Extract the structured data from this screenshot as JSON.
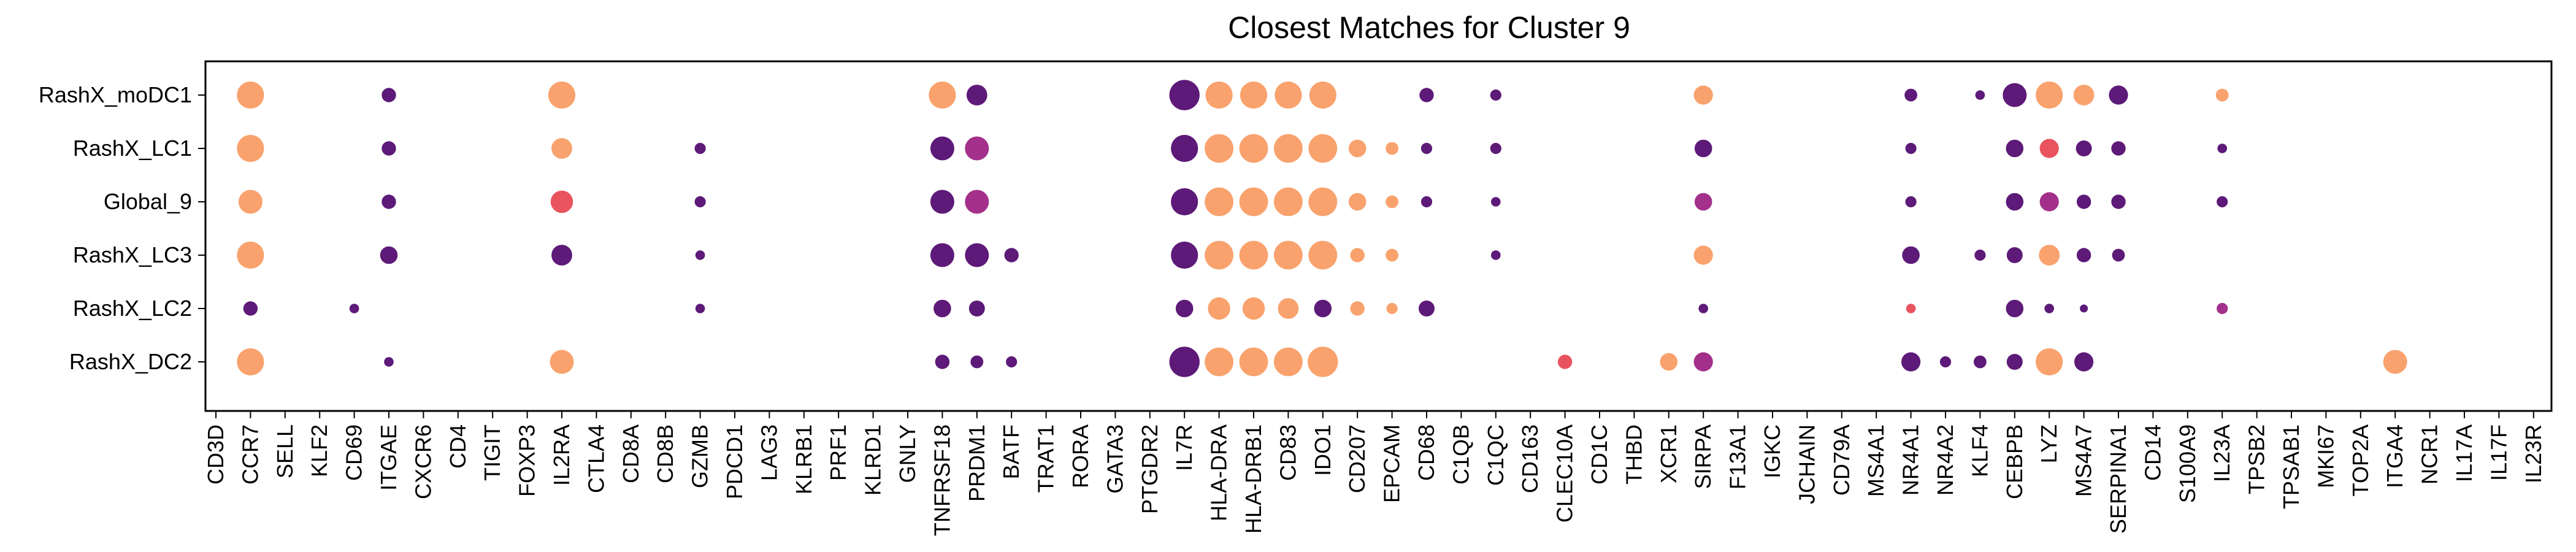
{
  "chart_data": {
    "type": "scatter",
    "title": "Closest Matches for Cluster 9",
    "xlabel": "",
    "ylabel": "",
    "grid": false,
    "genes": [
      "CD3D",
      "CCR7",
      "SELL",
      "KLF2",
      "CD69",
      "ITGAE",
      "CXCR6",
      "CD4",
      "TIGIT",
      "FOXP3",
      "IL2RA",
      "CTLA4",
      "CD8A",
      "CD8B",
      "GZMB",
      "PDCD1",
      "LAG3",
      "KLRB1",
      "PRF1",
      "KLRD1",
      "GNLY",
      "TNFRSF18",
      "PRDM1",
      "BATF",
      "TRAT1",
      "RORA",
      "GATA3",
      "PTGDR2",
      "IL7R",
      "HLA-DRA",
      "HLA-DRB1",
      "CD83",
      "IDO1",
      "CD207",
      "EPCAM",
      "CD68",
      "C1QB",
      "C1QC",
      "CD163",
      "CLEC10A",
      "CD1C",
      "THBD",
      "XCR1",
      "SIRPA",
      "F13A1",
      "IGKC",
      "JCHAIN",
      "CD79A",
      "MS4A1",
      "NR4A1",
      "NR4A2",
      "KLF4",
      "CEBPB",
      "LYZ",
      "MS4A7",
      "SERPINA1",
      "CD14",
      "S100A9",
      "IL23A",
      "TPSB2",
      "TPSAB1",
      "MKI67",
      "TOP2A",
      "ITGA4",
      "NCR1",
      "IL17A",
      "IL17F",
      "IL23R"
    ],
    "rows": [
      "RashX_moDC1",
      "RashX_LC1",
      "Global_9",
      "RashX_LC3",
      "RashX_LC2",
      "RashX_DC2"
    ],
    "size_scale": "relative point size 0-1",
    "color_palette": "magma (purple = low, orange = high)",
    "colors": {
      "low": "#5d1a78",
      "mid": "#a3308a",
      "red": "#e8535e",
      "high": "#f9a26d"
    },
    "points": [
      {
        "row": "RashX_moDC1",
        "gene": "CCR7",
        "size": 0.85,
        "color": "high"
      },
      {
        "row": "RashX_moDC1",
        "gene": "ITGAE",
        "size": 0.45,
        "color": "low"
      },
      {
        "row": "RashX_moDC1",
        "gene": "IL2RA",
        "size": 0.85,
        "color": "high"
      },
      {
        "row": "RashX_moDC1",
        "gene": "TNFRSF18",
        "size": 0.85,
        "color": "high"
      },
      {
        "row": "RashX_moDC1",
        "gene": "PRDM1",
        "size": 0.65,
        "color": "low"
      },
      {
        "row": "RashX_moDC1",
        "gene": "IL7R",
        "size": 0.95,
        "color": "low"
      },
      {
        "row": "RashX_moDC1",
        "gene": "HLA-DRA",
        "size": 0.85,
        "color": "high"
      },
      {
        "row": "RashX_moDC1",
        "gene": "HLA-DRB1",
        "size": 0.85,
        "color": "high"
      },
      {
        "row": "RashX_moDC1",
        "gene": "CD83",
        "size": 0.85,
        "color": "high"
      },
      {
        "row": "RashX_moDC1",
        "gene": "IDO1",
        "size": 0.85,
        "color": "high"
      },
      {
        "row": "RashX_moDC1",
        "gene": "CD68",
        "size": 0.45,
        "color": "low"
      },
      {
        "row": "RashX_moDC1",
        "gene": "C1QC",
        "size": 0.35,
        "color": "low"
      },
      {
        "row": "RashX_moDC1",
        "gene": "SIRPA",
        "size": 0.6,
        "color": "high"
      },
      {
        "row": "RashX_moDC1",
        "gene": "NR4A1",
        "size": 0.4,
        "color": "low"
      },
      {
        "row": "RashX_moDC1",
        "gene": "KLF4",
        "size": 0.3,
        "color": "low"
      },
      {
        "row": "RashX_moDC1",
        "gene": "CEBPB",
        "size": 0.75,
        "color": "low"
      },
      {
        "row": "RashX_moDC1",
        "gene": "LYZ",
        "size": 0.85,
        "color": "high"
      },
      {
        "row": "RashX_moDC1",
        "gene": "MS4A7",
        "size": 0.65,
        "color": "high"
      },
      {
        "row": "RashX_moDC1",
        "gene": "SERPINA1",
        "size": 0.6,
        "color": "low"
      },
      {
        "row": "RashX_moDC1",
        "gene": "IL23A",
        "size": 0.4,
        "color": "high"
      },
      {
        "row": "RashX_LC1",
        "gene": "CCR7",
        "size": 0.85,
        "color": "high"
      },
      {
        "row": "RashX_LC1",
        "gene": "ITGAE",
        "size": 0.45,
        "color": "low"
      },
      {
        "row": "RashX_LC1",
        "gene": "IL2RA",
        "size": 0.65,
        "color": "high"
      },
      {
        "row": "RashX_LC1",
        "gene": "GZMB",
        "size": 0.35,
        "color": "low"
      },
      {
        "row": "RashX_LC1",
        "gene": "TNFRSF18",
        "size": 0.75,
        "color": "low"
      },
      {
        "row": "RashX_LC1",
        "gene": "PRDM1",
        "size": 0.75,
        "color": "mid"
      },
      {
        "row": "RashX_LC1",
        "gene": "IL7R",
        "size": 0.85,
        "color": "low"
      },
      {
        "row": "RashX_LC1",
        "gene": "HLA-DRA",
        "size": 0.9,
        "color": "high"
      },
      {
        "row": "RashX_LC1",
        "gene": "HLA-DRB1",
        "size": 0.9,
        "color": "high"
      },
      {
        "row": "RashX_LC1",
        "gene": "CD83",
        "size": 0.9,
        "color": "high"
      },
      {
        "row": "RashX_LC1",
        "gene": "IDO1",
        "size": 0.9,
        "color": "high"
      },
      {
        "row": "RashX_LC1",
        "gene": "CD207",
        "size": 0.55,
        "color": "high"
      },
      {
        "row": "RashX_LC1",
        "gene": "EPCAM",
        "size": 0.4,
        "color": "high"
      },
      {
        "row": "RashX_LC1",
        "gene": "CD68",
        "size": 0.35,
        "color": "low"
      },
      {
        "row": "RashX_LC1",
        "gene": "C1QC",
        "size": 0.35,
        "color": "low"
      },
      {
        "row": "RashX_LC1",
        "gene": "SIRPA",
        "size": 0.55,
        "color": "low"
      },
      {
        "row": "RashX_LC1",
        "gene": "NR4A1",
        "size": 0.35,
        "color": "low"
      },
      {
        "row": "RashX_LC1",
        "gene": "CEBPB",
        "size": 0.55,
        "color": "low"
      },
      {
        "row": "RashX_LC1",
        "gene": "LYZ",
        "size": 0.6,
        "color": "red"
      },
      {
        "row": "RashX_LC1",
        "gene": "MS4A7",
        "size": 0.5,
        "color": "low"
      },
      {
        "row": "RashX_LC1",
        "gene": "SERPINA1",
        "size": 0.45,
        "color": "low"
      },
      {
        "row": "RashX_LC1",
        "gene": "IL23A",
        "size": 0.3,
        "color": "low"
      },
      {
        "row": "Global_9",
        "gene": "CCR7",
        "size": 0.75,
        "color": "high"
      },
      {
        "row": "Global_9",
        "gene": "ITGAE",
        "size": 0.45,
        "color": "low"
      },
      {
        "row": "Global_9",
        "gene": "IL2RA",
        "size": 0.7,
        "color": "red"
      },
      {
        "row": "Global_9",
        "gene": "GZMB",
        "size": 0.35,
        "color": "low"
      },
      {
        "row": "Global_9",
        "gene": "TNFRSF18",
        "size": 0.75,
        "color": "low"
      },
      {
        "row": "Global_9",
        "gene": "PRDM1",
        "size": 0.75,
        "color": "mid"
      },
      {
        "row": "Global_9",
        "gene": "IL7R",
        "size": 0.85,
        "color": "low"
      },
      {
        "row": "Global_9",
        "gene": "HLA-DRA",
        "size": 0.9,
        "color": "high"
      },
      {
        "row": "Global_9",
        "gene": "HLA-DRB1",
        "size": 0.9,
        "color": "high"
      },
      {
        "row": "Global_9",
        "gene": "CD83",
        "size": 0.9,
        "color": "high"
      },
      {
        "row": "Global_9",
        "gene": "IDO1",
        "size": 0.9,
        "color": "high"
      },
      {
        "row": "Global_9",
        "gene": "CD207",
        "size": 0.55,
        "color": "high"
      },
      {
        "row": "Global_9",
        "gene": "EPCAM",
        "size": 0.4,
        "color": "high"
      },
      {
        "row": "Global_9",
        "gene": "CD68",
        "size": 0.35,
        "color": "low"
      },
      {
        "row": "Global_9",
        "gene": "C1QC",
        "size": 0.3,
        "color": "low"
      },
      {
        "row": "Global_9",
        "gene": "SIRPA",
        "size": 0.55,
        "color": "mid"
      },
      {
        "row": "Global_9",
        "gene": "NR4A1",
        "size": 0.35,
        "color": "low"
      },
      {
        "row": "Global_9",
        "gene": "CEBPB",
        "size": 0.55,
        "color": "low"
      },
      {
        "row": "Global_9",
        "gene": "LYZ",
        "size": 0.6,
        "color": "mid"
      },
      {
        "row": "Global_9",
        "gene": "MS4A7",
        "size": 0.45,
        "color": "low"
      },
      {
        "row": "Global_9",
        "gene": "SERPINA1",
        "size": 0.45,
        "color": "low"
      },
      {
        "row": "Global_9",
        "gene": "IL23A",
        "size": 0.35,
        "color": "low"
      },
      {
        "row": "RashX_LC3",
        "gene": "CCR7",
        "size": 0.85,
        "color": "high"
      },
      {
        "row": "RashX_LC3",
        "gene": "ITGAE",
        "size": 0.55,
        "color": "low"
      },
      {
        "row": "RashX_LC3",
        "gene": "IL2RA",
        "size": 0.65,
        "color": "low"
      },
      {
        "row": "RashX_LC3",
        "gene": "GZMB",
        "size": 0.3,
        "color": "low"
      },
      {
        "row": "RashX_LC3",
        "gene": "TNFRSF18",
        "size": 0.75,
        "color": "low"
      },
      {
        "row": "RashX_LC3",
        "gene": "PRDM1",
        "size": 0.75,
        "color": "low"
      },
      {
        "row": "RashX_LC3",
        "gene": "BATF",
        "size": 0.45,
        "color": "low"
      },
      {
        "row": "RashX_LC3",
        "gene": "IL7R",
        "size": 0.85,
        "color": "low"
      },
      {
        "row": "RashX_LC3",
        "gene": "HLA-DRA",
        "size": 0.9,
        "color": "high"
      },
      {
        "row": "RashX_LC3",
        "gene": "HLA-DRB1",
        "size": 0.9,
        "color": "high"
      },
      {
        "row": "RashX_LC3",
        "gene": "CD83",
        "size": 0.9,
        "color": "high"
      },
      {
        "row": "RashX_LC3",
        "gene": "IDO1",
        "size": 0.9,
        "color": "high"
      },
      {
        "row": "RashX_LC3",
        "gene": "CD207",
        "size": 0.45,
        "color": "high"
      },
      {
        "row": "RashX_LC3",
        "gene": "EPCAM",
        "size": 0.4,
        "color": "high"
      },
      {
        "row": "RashX_LC3",
        "gene": "C1QC",
        "size": 0.3,
        "color": "low"
      },
      {
        "row": "RashX_LC3",
        "gene": "SIRPA",
        "size": 0.6,
        "color": "high"
      },
      {
        "row": "RashX_LC3",
        "gene": "NR4A1",
        "size": 0.55,
        "color": "low"
      },
      {
        "row": "RashX_LC3",
        "gene": "KLF4",
        "size": 0.35,
        "color": "low"
      },
      {
        "row": "RashX_LC3",
        "gene": "CEBPB",
        "size": 0.5,
        "color": "low"
      },
      {
        "row": "RashX_LC3",
        "gene": "LYZ",
        "size": 0.65,
        "color": "high"
      },
      {
        "row": "RashX_LC3",
        "gene": "MS4A7",
        "size": 0.45,
        "color": "low"
      },
      {
        "row": "RashX_LC3",
        "gene": "SERPINA1",
        "size": 0.4,
        "color": "low"
      },
      {
        "row": "RashX_LC2",
        "gene": "CCR7",
        "size": 0.45,
        "color": "low"
      },
      {
        "row": "RashX_LC2",
        "gene": "CD69",
        "size": 0.3,
        "color": "low"
      },
      {
        "row": "RashX_LC2",
        "gene": "GZMB",
        "size": 0.3,
        "color": "low"
      },
      {
        "row": "RashX_LC2",
        "gene": "TNFRSF18",
        "size": 0.55,
        "color": "low"
      },
      {
        "row": "RashX_LC2",
        "gene": "PRDM1",
        "size": 0.5,
        "color": "low"
      },
      {
        "row": "RashX_LC2",
        "gene": "IL7R",
        "size": 0.55,
        "color": "low"
      },
      {
        "row": "RashX_LC2",
        "gene": "HLA-DRA",
        "size": 0.7,
        "color": "high"
      },
      {
        "row": "RashX_LC2",
        "gene": "HLA-DRB1",
        "size": 0.7,
        "color": "high"
      },
      {
        "row": "RashX_LC2",
        "gene": "CD83",
        "size": 0.65,
        "color": "high"
      },
      {
        "row": "RashX_LC2",
        "gene": "IDO1",
        "size": 0.55,
        "color": "low"
      },
      {
        "row": "RashX_LC2",
        "gene": "CD207",
        "size": 0.45,
        "color": "high"
      },
      {
        "row": "RashX_LC2",
        "gene": "EPCAM",
        "size": 0.35,
        "color": "high"
      },
      {
        "row": "RashX_LC2",
        "gene": "CD68",
        "size": 0.5,
        "color": "low"
      },
      {
        "row": "RashX_LC2",
        "gene": "SIRPA",
        "size": 0.3,
        "color": "low"
      },
      {
        "row": "RashX_LC2",
        "gene": "NR4A1",
        "size": 0.3,
        "color": "red"
      },
      {
        "row": "RashX_LC2",
        "gene": "CEBPB",
        "size": 0.55,
        "color": "low"
      },
      {
        "row": "RashX_LC2",
        "gene": "LYZ",
        "size": 0.3,
        "color": "low"
      },
      {
        "row": "RashX_LC2",
        "gene": "MS4A7",
        "size": 0.25,
        "color": "low"
      },
      {
        "row": "RashX_LC2",
        "gene": "IL23A",
        "size": 0.35,
        "color": "mid"
      },
      {
        "row": "RashX_DC2",
        "gene": "CCR7",
        "size": 0.85,
        "color": "high"
      },
      {
        "row": "RashX_DC2",
        "gene": "ITGAE",
        "size": 0.3,
        "color": "low"
      },
      {
        "row": "RashX_DC2",
        "gene": "IL2RA",
        "size": 0.75,
        "color": "high"
      },
      {
        "row": "RashX_DC2",
        "gene": "TNFRSF18",
        "size": 0.45,
        "color": "low"
      },
      {
        "row": "RashX_DC2",
        "gene": "PRDM1",
        "size": 0.4,
        "color": "low"
      },
      {
        "row": "RashX_DC2",
        "gene": "BATF",
        "size": 0.35,
        "color": "low"
      },
      {
        "row": "RashX_DC2",
        "gene": "IL7R",
        "size": 0.95,
        "color": "low"
      },
      {
        "row": "RashX_DC2",
        "gene": "HLA-DRA",
        "size": 0.9,
        "color": "high"
      },
      {
        "row": "RashX_DC2",
        "gene": "HLA-DRB1",
        "size": 0.9,
        "color": "high"
      },
      {
        "row": "RashX_DC2",
        "gene": "CD83",
        "size": 0.9,
        "color": "high"
      },
      {
        "row": "RashX_DC2",
        "gene": "IDO1",
        "size": 0.95,
        "color": "high"
      },
      {
        "row": "RashX_DC2",
        "gene": "CLEC10A",
        "size": 0.45,
        "color": "red"
      },
      {
        "row": "RashX_DC2",
        "gene": "XCR1",
        "size": 0.55,
        "color": "high"
      },
      {
        "row": "RashX_DC2",
        "gene": "SIRPA",
        "size": 0.6,
        "color": "mid"
      },
      {
        "row": "RashX_DC2",
        "gene": "NR4A1",
        "size": 0.6,
        "color": "low"
      },
      {
        "row": "RashX_DC2",
        "gene": "NR4A2",
        "size": 0.35,
        "color": "low"
      },
      {
        "row": "RashX_DC2",
        "gene": "KLF4",
        "size": 0.4,
        "color": "low"
      },
      {
        "row": "RashX_DC2",
        "gene": "CEBPB",
        "size": 0.5,
        "color": "low"
      },
      {
        "row": "RashX_DC2",
        "gene": "LYZ",
        "size": 0.85,
        "color": "high"
      },
      {
        "row": "RashX_DC2",
        "gene": "MS4A7",
        "size": 0.6,
        "color": "low"
      },
      {
        "row": "RashX_DC2",
        "gene": "ITGA4",
        "size": 0.75,
        "color": "high"
      }
    ]
  }
}
